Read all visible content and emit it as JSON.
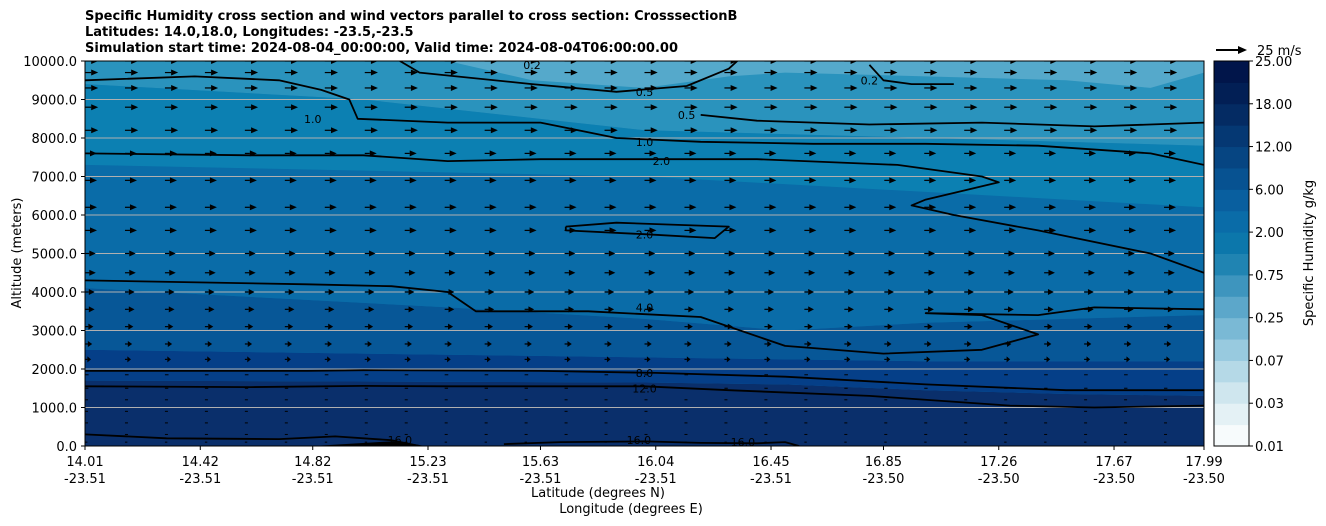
{
  "chart_data": {
    "type": "contour",
    "title_lines": [
      "Specific Humidity cross section and wind vectors parallel to cross section: CrosssectionB",
      "Latitudes: 14.0,18.0, Longitudes: -23.5,-23.5",
      "Simulation start time: 2024-08-04_00:00:00, Valid time: 2024-08-04T06:00:00.00"
    ],
    "ylabel": "Altitude (meters)",
    "xlabel_lat": "Latitude (degrees N)",
    "xlabel_lon": "Longitude (degrees E)",
    "ylim": [
      0,
      10000
    ],
    "y_ticks": [
      "0.0",
      "1000.0",
      "2000.0",
      "3000.0",
      "4000.0",
      "5000.0",
      "6000.0",
      "7000.0",
      "8000.0",
      "9000.0",
      "10000.0"
    ],
    "y_tick_values": [
      0,
      1000,
      2000,
      3000,
      4000,
      5000,
      6000,
      7000,
      8000,
      9000,
      10000
    ],
    "x_ticks": [
      {
        "lat": "14.01",
        "lon": "-23.51"
      },
      {
        "lat": "14.42",
        "lon": "-23.51"
      },
      {
        "lat": "14.82",
        "lon": "-23.51"
      },
      {
        "lat": "15.23",
        "lon": "-23.51"
      },
      {
        "lat": "15.63",
        "lon": "-23.51"
      },
      {
        "lat": "16.04",
        "lon": "-23.51"
      },
      {
        "lat": "16.45",
        "lon": "-23.51"
      },
      {
        "lat": "16.85",
        "lon": "-23.50"
      },
      {
        "lat": "17.26",
        "lon": "-23.50"
      },
      {
        "lat": "17.67",
        "lon": "-23.50"
      },
      {
        "lat": "17.99",
        "lon": "-23.50"
      }
    ],
    "colorbar": {
      "label": "Specific Humidity g/kg",
      "tick_labels": [
        "0.01",
        "0.03",
        "0.07",
        "0.25",
        "0.75",
        "2.00",
        "6.00",
        "12.00",
        "18.00",
        "25.00"
      ]
    },
    "quiver_key": "25 m/s",
    "contour_labels": [
      {
        "text": "0.2",
        "lat": 15.6,
        "alt": 9900
      },
      {
        "text": "0.5",
        "lat": 16.0,
        "alt": 9200
      },
      {
        "text": "0.5",
        "lat": 16.15,
        "alt": 8600
      },
      {
        "text": "0.2",
        "lat": 16.8,
        "alt": 9500
      },
      {
        "text": "1.0",
        "lat": 14.82,
        "alt": 8500
      },
      {
        "text": "1.0",
        "lat": 16.0,
        "alt": 7900
      },
      {
        "text": "2.0",
        "lat": 16.06,
        "alt": 7400
      },
      {
        "text": "2.0",
        "lat": 16.0,
        "alt": 5500
      },
      {
        "text": "4.0",
        "lat": 16.0,
        "alt": 3600
      },
      {
        "text": "8.0",
        "lat": 16.0,
        "alt": 1900
      },
      {
        "text": "12.0",
        "lat": 16.0,
        "alt": 1500
      },
      {
        "text": "16.0",
        "lat": 15.13,
        "alt": 150
      },
      {
        "text": "16.0",
        "lat": 15.98,
        "alt": 150
      },
      {
        "text": "16.0",
        "lat": 16.35,
        "alt": 100
      }
    ],
    "contours": [
      {
        "level": "16.0",
        "points": [
          [
            14.01,
            300
          ],
          [
            14.3,
            200
          ],
          [
            14.7,
            180
          ],
          [
            14.9,
            250
          ],
          [
            15.1,
            150
          ],
          [
            15.2,
            0
          ]
        ]
      },
      {
        "level": "16.0",
        "points": [
          [
            15.5,
            50
          ],
          [
            15.7,
            100
          ],
          [
            16.0,
            120
          ],
          [
            16.2,
            80
          ],
          [
            16.4,
            70
          ],
          [
            16.5,
            100
          ],
          [
            16.55,
            0
          ]
        ]
      },
      {
        "level": "12.0",
        "points": [
          [
            14.01,
            1550
          ],
          [
            14.6,
            1530
          ],
          [
            15.0,
            1560
          ],
          [
            15.3,
            1550
          ],
          [
            16.0,
            1550
          ],
          [
            16.3,
            1450
          ],
          [
            16.8,
            1300
          ],
          [
            17.3,
            1050
          ],
          [
            17.6,
            1000
          ],
          [
            17.99,
            1050
          ]
        ]
      },
      {
        "level": "8.0",
        "points": [
          [
            14.01,
            1950
          ],
          [
            14.8,
            1950
          ],
          [
            15.0,
            1970
          ],
          [
            15.63,
            1950
          ],
          [
            16.04,
            1900
          ],
          [
            16.5,
            1800
          ],
          [
            17.0,
            1600
          ],
          [
            17.5,
            1450
          ],
          [
            17.99,
            1450
          ]
        ]
      },
      {
        "level": "4.0",
        "points": [
          [
            14.01,
            4300
          ],
          [
            14.8,
            4200
          ],
          [
            15.1,
            4150
          ],
          [
            15.3,
            4000
          ],
          [
            15.4,
            3500
          ],
          [
            15.8,
            3500
          ],
          [
            16.2,
            3350
          ],
          [
            16.5,
            2600
          ],
          [
            16.85,
            2400
          ],
          [
            17.2,
            2500
          ],
          [
            17.4,
            2900
          ],
          [
            17.2,
            3400
          ],
          [
            17.0,
            3450
          ],
          [
            17.4,
            3400
          ],
          [
            17.6,
            3600
          ],
          [
            17.99,
            3550
          ]
        ]
      },
      {
        "level": "2.0",
        "points": [
          [
            15.72,
            5700
          ],
          [
            15.9,
            5800
          ],
          [
            16.3,
            5700
          ],
          [
            16.25,
            5400
          ],
          [
            16.0,
            5500
          ],
          [
            15.72,
            5600
          ],
          [
            15.72,
            5700
          ]
        ]
      },
      {
        "level": "2.0",
        "points": [
          [
            14.01,
            7600
          ],
          [
            14.6,
            7550
          ],
          [
            15.0,
            7550
          ],
          [
            15.3,
            7400
          ],
          [
            15.63,
            7450
          ],
          [
            16.04,
            7450
          ],
          [
            16.4,
            7450
          ],
          [
            16.9,
            7300
          ],
          [
            17.2,
            7000
          ],
          [
            17.26,
            6850
          ],
          [
            17.0,
            6400
          ],
          [
            16.95,
            6250
          ],
          [
            17.1,
            6000
          ],
          [
            17.4,
            5600
          ],
          [
            17.8,
            5000
          ],
          [
            17.99,
            4500
          ]
        ]
      },
      {
        "level": "1.0",
        "points": [
          [
            14.01,
            9500
          ],
          [
            14.4,
            9600
          ],
          [
            14.7,
            9500
          ],
          [
            14.85,
            9250
          ],
          [
            14.95,
            9000
          ],
          [
            14.98,
            8500
          ],
          [
            15.3,
            8400
          ],
          [
            15.63,
            8400
          ],
          [
            15.9,
            8000
          ],
          [
            16.2,
            7900
          ],
          [
            16.6,
            7850
          ],
          [
            17.0,
            7850
          ],
          [
            17.4,
            7800
          ],
          [
            17.8,
            7600
          ],
          [
            17.99,
            7300
          ]
        ]
      },
      {
        "level": "0.5",
        "points": [
          [
            15.13,
            10000
          ],
          [
            15.2,
            9700
          ],
          [
            15.6,
            9400
          ],
          [
            15.9,
            9200
          ],
          [
            16.15,
            9350
          ],
          [
            16.3,
            9800
          ],
          [
            16.33,
            10000
          ]
        ]
      },
      {
        "level": "0.5",
        "points": [
          [
            16.2,
            8600
          ],
          [
            16.4,
            8450
          ],
          [
            16.8,
            8350
          ],
          [
            17.2,
            8400
          ],
          [
            17.6,
            8300
          ],
          [
            17.99,
            8400
          ]
        ]
      },
      {
        "level": "0.2",
        "points": [
          [
            16.8,
            9900
          ],
          [
            16.85,
            9500
          ],
          [
            16.95,
            9400
          ],
          [
            17.1,
            9400
          ]
        ]
      }
    ],
    "fill_layers": [
      {
        "color": "#0a2f6b",
        "points": [
          [
            14.01,
            0
          ],
          [
            17.99,
            0
          ],
          [
            17.99,
            1300
          ],
          [
            17.5,
            1350
          ],
          [
            17.0,
            1450
          ],
          [
            16.5,
            1600
          ],
          [
            16.0,
            1650
          ],
          [
            14.01,
            1700
          ]
        ]
      },
      {
        "color": "#053f88",
        "points": [
          [
            14.01,
            1700
          ],
          [
            16.0,
            1650
          ],
          [
            16.5,
            1600
          ],
          [
            17.0,
            1450
          ],
          [
            17.5,
            1350
          ],
          [
            17.99,
            1300
          ],
          [
            17.99,
            2200
          ],
          [
            17.0,
            2200
          ],
          [
            16.0,
            2300
          ],
          [
            14.01,
            2500
          ]
        ]
      },
      {
        "color": "#075797",
        "points": [
          [
            14.01,
            2500
          ],
          [
            16.0,
            2300
          ],
          [
            17.0,
            2200
          ],
          [
            17.99,
            2200
          ],
          [
            17.99,
            3400
          ],
          [
            17.0,
            3200
          ],
          [
            16.5,
            3000
          ],
          [
            16.0,
            3300
          ],
          [
            15.3,
            3600
          ],
          [
            14.01,
            4100
          ]
        ]
      },
      {
        "color": "#0a6ca8",
        "points": [
          [
            14.01,
            4100
          ],
          [
            15.3,
            3600
          ],
          [
            16.0,
            3300
          ],
          [
            16.5,
            3000
          ],
          [
            17.0,
            3200
          ],
          [
            17.99,
            3400
          ],
          [
            17.99,
            6200
          ],
          [
            17.0,
            6600
          ],
          [
            16.0,
            7000
          ],
          [
            14.01,
            7300
          ]
        ]
      },
      {
        "color": "#0c80b2",
        "points": [
          [
            14.01,
            7300
          ],
          [
            16.0,
            7000
          ],
          [
            17.0,
            6600
          ],
          [
            17.99,
            6200
          ],
          [
            17.99,
            7800
          ],
          [
            17.0,
            8000
          ],
          [
            16.0,
            8200
          ],
          [
            15.0,
            9000
          ],
          [
            14.01,
            9400
          ]
        ]
      },
      {
        "color": "#2a93bd",
        "points": [
          [
            14.01,
            9400
          ],
          [
            15.0,
            9000
          ],
          [
            16.0,
            8200
          ],
          [
            17.0,
            8000
          ],
          [
            17.99,
            7800
          ],
          [
            17.99,
            10000
          ],
          [
            14.01,
            10000
          ]
        ]
      },
      {
        "color": "#55a9cb",
        "points": [
          [
            15.3,
            10000
          ],
          [
            15.6,
            9500
          ],
          [
            16.0,
            9300
          ],
          [
            16.3,
            9600
          ],
          [
            16.5,
            9700
          ],
          [
            17.0,
            9600
          ],
          [
            17.5,
            9500
          ],
          [
            17.8,
            9300
          ],
          [
            17.99,
            9700
          ],
          [
            17.99,
            10000
          ]
        ]
      }
    ],
    "terrain": {
      "color": "#000000",
      "points": [
        [
          14.82,
          0
        ],
        [
          15.05,
          100
        ],
        [
          15.1,
          120
        ],
        [
          15.18,
          50
        ],
        [
          15.22,
          0
        ]
      ]
    },
    "wind_vectors": {
      "lat_start": 14.01,
      "lat_end": 17.99,
      "columns": 29,
      "alt_levels": [
        0,
        100,
        300,
        600,
        900,
        1200,
        1500,
        1850,
        2250,
        2650,
        3100,
        3550,
        4000,
        4500,
        5000,
        5600,
        6200,
        6900,
        7600,
        8200,
        8800,
        9300,
        9700,
        10000
      ],
      "u_profile": [
        1.5,
        2,
        2.5,
        2.5,
        2.5,
        2.5,
        2.8,
        3,
        5,
        6,
        7,
        8,
        8,
        9,
        9,
        10,
        10,
        10,
        10,
        11,
        11,
        11,
        11,
        11
      ]
    }
  }
}
